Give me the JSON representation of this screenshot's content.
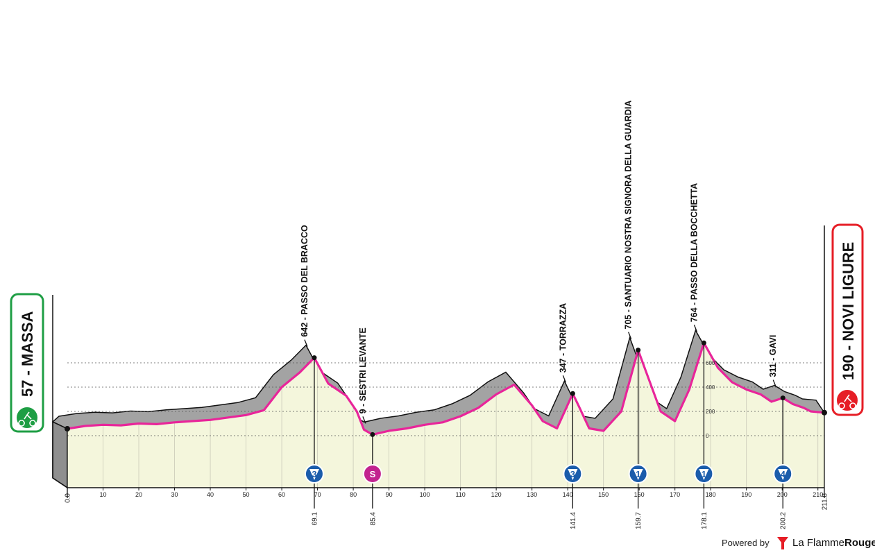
{
  "chart_data": {
    "type": "area",
    "xlabel": "",
    "ylabel": "",
    "xlim": [
      0,
      211.8
    ],
    "ylim": [
      -200,
      900
    ],
    "x_ticks": [
      0,
      10,
      20,
      30,
      40,
      50,
      60,
      70,
      80,
      90,
      100,
      110,
      120,
      130,
      140,
      150,
      160,
      170,
      180,
      190,
      200,
      210
    ],
    "x_tick_labels": [
      "0",
      "10",
      "20",
      "30",
      "40",
      "50",
      "60",
      "70",
      "80",
      "90",
      "100",
      "110",
      "120",
      "130",
      "140",
      "150",
      "160",
      "170",
      "180",
      "190",
      "200",
      "210"
    ],
    "y_ticks": [
      0,
      200,
      400,
      600
    ],
    "y_tick_labels": [
      "0",
      "200",
      "400",
      "600"
    ],
    "grid": true,
    "profile": {
      "x": [
        0,
        5,
        10,
        15,
        20,
        25,
        30,
        35,
        40,
        45,
        50,
        55,
        60,
        65,
        69.1,
        73,
        78,
        81,
        83,
        85.4,
        90,
        95,
        100,
        105,
        110,
        115,
        120,
        125,
        130,
        133,
        137,
        141.4,
        143,
        146,
        150,
        155,
        159.7,
        162,
        166,
        170,
        174,
        178.1,
        182,
        186,
        190,
        194,
        197,
        200.2,
        203,
        206,
        208,
        211.8
      ],
      "y": [
        57,
        80,
        90,
        85,
        100,
        95,
        110,
        120,
        130,
        150,
        170,
        210,
        400,
        520,
        642,
        430,
        330,
        200,
        50,
        9,
        40,
        60,
        90,
        110,
        160,
        230,
        340,
        420,
        250,
        120,
        60,
        347,
        250,
        60,
        40,
        200,
        705,
        520,
        200,
        120,
        380,
        764,
        560,
        440,
        380,
        340,
        280,
        311,
        260,
        230,
        200,
        190
      ]
    },
    "start": {
      "km": 0,
      "label": "57 - MASSA"
    },
    "finish": {
      "km": 211.8,
      "label": "190 - NOVI LIGURE"
    },
    "climbs": [
      {
        "km": 69.1,
        "label": "642 - PASSO DEL BRACCO",
        "badge": "3",
        "km_label": "69.1"
      },
      {
        "km": 85.4,
        "label": "9 - SESTRI LEVANTE",
        "badge": "S",
        "km_label": "85.4"
      },
      {
        "km": 141.4,
        "label": "347 - TORRAZZA",
        "badge": "3",
        "km_label": "141.4"
      },
      {
        "km": 159.7,
        "label": "705 - SANTUARIO NOSTRA SIGNORA DELLA GUARDIA",
        "badge": "1",
        "km_label": "159.7"
      },
      {
        "km": 178.1,
        "label": "764 - PASSO DELLA BOCCHETTA",
        "badge": "1",
        "km_label": "178.1"
      },
      {
        "km": 200.2,
        "label": "311 - GAVI",
        "badge": "4",
        "km_label": "200.2"
      }
    ],
    "axis_end_labels": [
      "0.0",
      "211.8"
    ],
    "colors": {
      "profile_line": "#e8259a",
      "profile_fill": "#f4f6dc",
      "relief": "#a3a3a3",
      "start_green": "#1e9e44",
      "finish_red": "#e61e26",
      "climb_badge": "#1a5cab",
      "sprint_badge": "#c2238f"
    }
  },
  "footer": {
    "powered_by": "Powered by",
    "brand_a": "La Flamme",
    "brand_b": "Rouge"
  }
}
